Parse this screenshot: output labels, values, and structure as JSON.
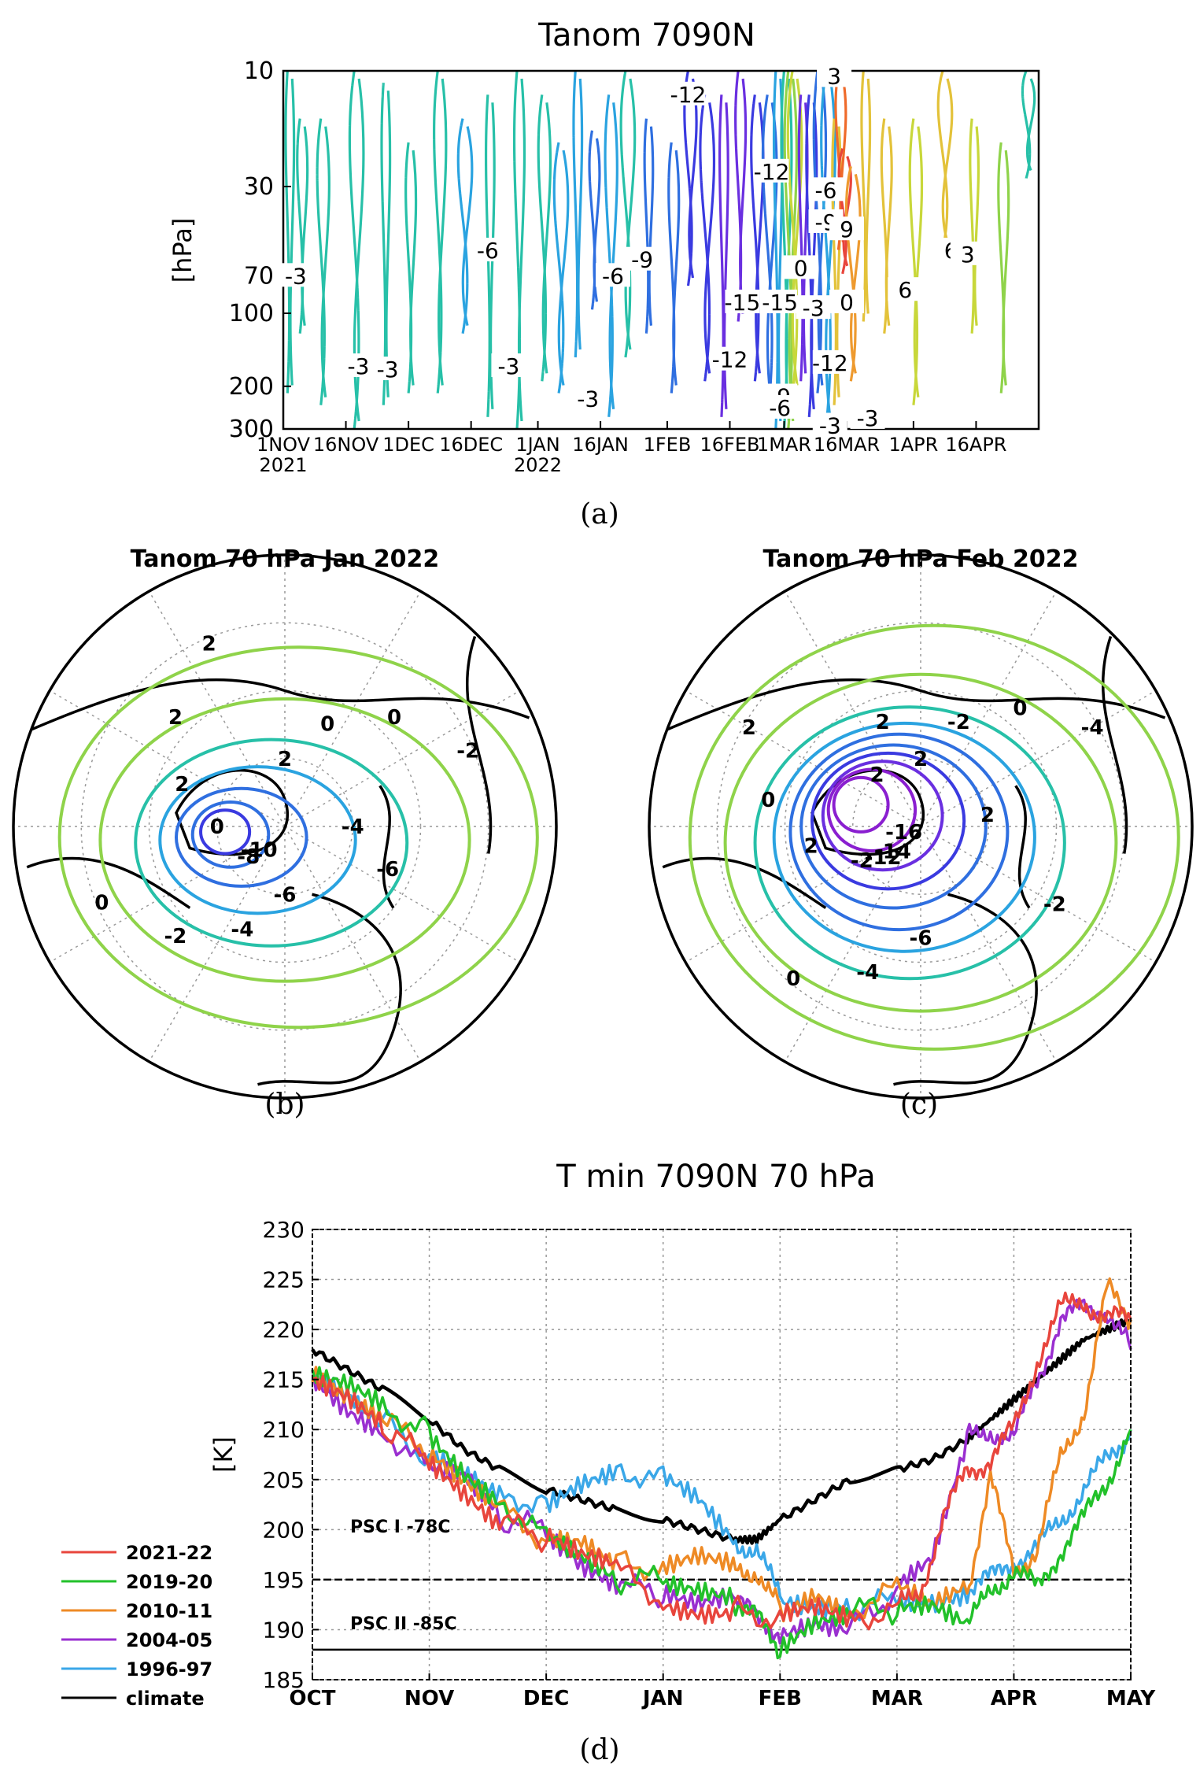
{
  "captions": {
    "a": "(a)",
    "b": "(b)",
    "c": "(c)",
    "d": "(d)"
  },
  "chart_data": [
    {
      "type": "contour",
      "panel": "(a)",
      "title": "Tanom 7090N",
      "ylabel": "[hPa]",
      "xlabel": "",
      "y_ticks": [
        "10",
        "30",
        "70",
        "100",
        "200",
        "300"
      ],
      "x_ticks": [
        "1NOV",
        "16NOV",
        "1DEC",
        "16DEC",
        "1JAN",
        "16JAN",
        "1FEB",
        "16FEB",
        "1MAR",
        "16MAR",
        "1APR",
        "16APR"
      ],
      "x_year_labels": [
        "2021",
        "2022"
      ],
      "contour_labels": [
        {
          "date": "2021-11-04",
          "p": 70,
          "v": "-3"
        },
        {
          "date": "2021-11-19",
          "p": 165,
          "v": "-3"
        },
        {
          "date": "2021-11-26",
          "p": 170,
          "v": "-3"
        },
        {
          "date": "2021-12-20",
          "p": 55,
          "v": "-6"
        },
        {
          "date": "2021-12-25",
          "p": 165,
          "v": "-3"
        },
        {
          "date": "2022-01-13",
          "p": 225,
          "v": "-3"
        },
        {
          "date": "2022-01-19",
          "p": 70,
          "v": "-6"
        },
        {
          "date": "2022-01-26",
          "p": 60,
          "v": "-9"
        },
        {
          "date": "2022-02-06",
          "p": 12.5,
          "v": "-12"
        },
        {
          "date": "2022-02-19",
          "p": 90,
          "v": "-15"
        },
        {
          "date": "2022-02-16",
          "p": 155,
          "v": "-12"
        },
        {
          "date": "2022-02-26",
          "p": 26,
          "v": "-12"
        },
        {
          "date": "2022-02-28",
          "p": 90,
          "v": "-15"
        },
        {
          "date": "2022-02-28",
          "p": 220,
          "v": "-9"
        },
        {
          "date": "2022-02-28",
          "p": 245,
          "v": "-6"
        },
        {
          "date": "2022-03-05",
          "p": 65,
          "v": "0"
        },
        {
          "date": "2022-03-08",
          "p": 95,
          "v": "-3"
        },
        {
          "date": "2022-03-11",
          "p": 31,
          "v": "-6"
        },
        {
          "date": "2022-03-11",
          "p": 42,
          "v": "-9"
        },
        {
          "date": "2022-03-12",
          "p": 160,
          "v": "-12"
        },
        {
          "date": "2022-03-12",
          "p": 290,
          "v": "-3"
        },
        {
          "date": "2022-03-13",
          "p": 10.5,
          "v": "3"
        },
        {
          "date": "2022-03-16",
          "p": 45,
          "v": "9"
        },
        {
          "date": "2022-03-16",
          "p": 90,
          "v": "0"
        },
        {
          "date": "2022-03-21",
          "p": 270,
          "v": "-3"
        },
        {
          "date": "2022-03-30",
          "p": 80,
          "v": "6"
        },
        {
          "date": "2022-04-10",
          "p": 55,
          "v": "6"
        },
        {
          "date": "2022-04-14",
          "p": 57,
          "v": "3"
        }
      ]
    },
    {
      "type": "polar-contour",
      "panel": "(b)",
      "title": "Tanom 70 hPa Jan 2022",
      "contour_labels": [
        "2",
        "0",
        "0",
        "-2",
        "-4",
        "-6",
        "-10",
        "-8",
        "-6",
        "-4",
        "-2",
        "0",
        "0",
        "2",
        "2",
        "2"
      ]
    },
    {
      "type": "polar-contour",
      "panel": "(c)",
      "title": "Tanom 70 hPa Feb 2022",
      "contour_labels": [
        "2",
        "-2",
        "0",
        "-4",
        "2",
        "-16",
        "-2",
        "-14",
        "-12",
        "-6",
        "-4",
        "0",
        "-2",
        "2",
        "0",
        "2",
        "2",
        "2"
      ]
    },
    {
      "type": "line",
      "panel": "(d)",
      "title": "T min 7090N 70 hPa",
      "ylabel": "[K]",
      "ylim": [
        185,
        230
      ],
      "yticks": [
        185,
        190,
        195,
        200,
        205,
        210,
        215,
        220,
        225,
        230
      ],
      "months": [
        "OCT",
        "NOV",
        "DEC",
        "JAN",
        "FEB",
        "MAR",
        "APR",
        "MAY"
      ],
      "reference_lines": [
        {
          "value": 195,
          "label": "PSC I -78C",
          "style": "dashed"
        },
        {
          "value": 188,
          "label": "PSC II -85C",
          "style": "solid"
        }
      ],
      "x_unit": "month index (0 = 1 Oct, 7 = 1 May)",
      "series": [
        {
          "name": "2021-22",
          "color": "#e8453c",
          "points": [
            [
              0,
              215
            ],
            [
              0.3,
              213
            ],
            [
              0.6,
              210
            ],
            [
              1.0,
              207
            ],
            [
              1.3,
              204
            ],
            [
              1.6,
              201
            ],
            [
              2.0,
              199
            ],
            [
              2.3,
              197
            ],
            [
              2.6,
              196
            ],
            [
              3.0,
              193
            ],
            [
              3.3,
              192
            ],
            [
              3.6,
              192
            ],
            [
              4.0,
              191
            ],
            [
              4.3,
              192
            ],
            [
              4.6,
              191
            ],
            [
              5.0,
              192
            ],
            [
              5.2,
              194
            ],
            [
              5.4,
              201
            ],
            [
              5.6,
              206
            ],
            [
              5.8,
              207
            ],
            [
              6.0,
              210
            ],
            [
              6.2,
              217
            ],
            [
              6.4,
              222
            ],
            [
              6.6,
              223
            ],
            [
              6.8,
              221
            ],
            [
              7.0,
              221
            ]
          ]
        },
        {
          "name": "2019-20",
          "color": "#22c12a",
          "points": [
            [
              0,
              215
            ],
            [
              0.3,
              214
            ],
            [
              0.6,
              212
            ],
            [
              1.0,
              210
            ],
            [
              1.3,
              206
            ],
            [
              1.6,
              203
            ],
            [
              2.0,
              199
            ],
            [
              2.3,
              197
            ],
            [
              2.6,
              195
            ],
            [
              3.0,
              195
            ],
            [
              3.3,
              194
            ],
            [
              3.6,
              193
            ],
            [
              3.8,
              191
            ],
            [
              4.0,
              188
            ],
            [
              4.3,
              191
            ],
            [
              4.6,
              192
            ],
            [
              5.0,
              192
            ],
            [
              5.3,
              192
            ],
            [
              5.6,
              190
            ],
            [
              5.8,
              194
            ],
            [
              6.0,
              196
            ],
            [
              6.2,
              194
            ],
            [
              6.4,
              198
            ],
            [
              6.6,
              201
            ],
            [
              6.8,
              205
            ],
            [
              7.0,
              210
            ]
          ]
        },
        {
          "name": "2010-11",
          "color": "#ee8a25",
          "points": [
            [
              0,
              215
            ],
            [
              0.3,
              213
            ],
            [
              0.6,
              211
            ],
            [
              1.0,
              208
            ],
            [
              1.3,
              205
            ],
            [
              1.6,
              202
            ],
            [
              2.0,
              199
            ],
            [
              2.3,
              199
            ],
            [
              2.6,
              197
            ],
            [
              3.0,
              196
            ],
            [
              3.3,
              197
            ],
            [
              3.6,
              196
            ],
            [
              3.8,
              196
            ],
            [
              4.0,
              192
            ],
            [
              4.3,
              194
            ],
            [
              4.6,
              192
            ],
            [
              5.0,
              194
            ],
            [
              5.3,
              192
            ],
            [
              5.6,
              194
            ],
            [
              5.8,
              205
            ],
            [
              6.0,
              196
            ],
            [
              6.2,
              198
            ],
            [
              6.4,
              207
            ],
            [
              6.6,
              212
            ],
            [
              6.8,
              224
            ],
            [
              7.0,
              221
            ]
          ]
        },
        {
          "name": "2004-05",
          "color": "#9a2fd0",
          "points": [
            [
              0,
              215
            ],
            [
              0.3,
              212
            ],
            [
              0.6,
              210
            ],
            [
              1.0,
              206
            ],
            [
              1.3,
              205
            ],
            [
              1.6,
              201
            ],
            [
              2.0,
              200
            ],
            [
              2.3,
              197
            ],
            [
              2.6,
              195
            ],
            [
              3.0,
              193
            ],
            [
              3.3,
              192
            ],
            [
              3.6,
              193
            ],
            [
              3.8,
              191
            ],
            [
              4.0,
              190
            ],
            [
              4.3,
              191
            ],
            [
              4.6,
              190
            ],
            [
              5.0,
              194
            ],
            [
              5.3,
              197
            ],
            [
              5.6,
              209
            ],
            [
              5.8,
              210
            ],
            [
              6.0,
              209
            ],
            [
              6.2,
              215
            ],
            [
              6.4,
              221
            ],
            [
              6.6,
              222
            ],
            [
              6.8,
              222
            ],
            [
              7.0,
              218
            ]
          ]
        },
        {
          "name": "1996-97",
          "color": "#3aa7e8",
          "points": [
            [
              0,
              216
            ],
            [
              0.3,
              214
            ],
            [
              0.6,
              211
            ],
            [
              1.0,
              207
            ],
            [
              1.3,
              205
            ],
            [
              1.6,
              203
            ],
            [
              2.0,
              203
            ],
            [
              2.3,
              205
            ],
            [
              2.6,
              206
            ],
            [
              3.0,
              205
            ],
            [
              3.3,
              203
            ],
            [
              3.6,
              199
            ],
            [
              3.8,
              198
            ],
            [
              4.0,
              193
            ],
            [
              4.3,
              192
            ],
            [
              4.6,
              192
            ],
            [
              5.0,
              193
            ],
            [
              5.3,
              193
            ],
            [
              5.6,
              194
            ],
            [
              5.8,
              195
            ],
            [
              6.0,
              197
            ],
            [
              6.2,
              198
            ],
            [
              6.4,
              201
            ],
            [
              6.6,
              204
            ],
            [
              6.8,
              207
            ],
            [
              7.0,
              210
            ]
          ]
        },
        {
          "name": "climate",
          "color": "#000000",
          "points": [
            [
              0,
              218
            ],
            [
              0.3,
              216
            ],
            [
              0.6,
              214
            ],
            [
              1.0,
              211
            ],
            [
              1.3,
              208
            ],
            [
              1.6,
              206
            ],
            [
              2.0,
              204
            ],
            [
              2.3,
              203
            ],
            [
              2.6,
              202
            ],
            [
              3.0,
              201
            ],
            [
              3.3,
              200
            ],
            [
              3.6,
              199
            ],
            [
              3.8,
              199
            ],
            [
              4.0,
              201
            ],
            [
              4.3,
              203
            ],
            [
              4.6,
              205
            ],
            [
              5.0,
              206
            ],
            [
              5.3,
              207
            ],
            [
              5.6,
              209
            ],
            [
              5.8,
              211
            ],
            [
              6.0,
              213
            ],
            [
              6.2,
              215
            ],
            [
              6.4,
              217
            ],
            [
              6.6,
              219
            ],
            [
              6.8,
              220
            ],
            [
              7.0,
              221
            ]
          ]
        }
      ]
    }
  ]
}
